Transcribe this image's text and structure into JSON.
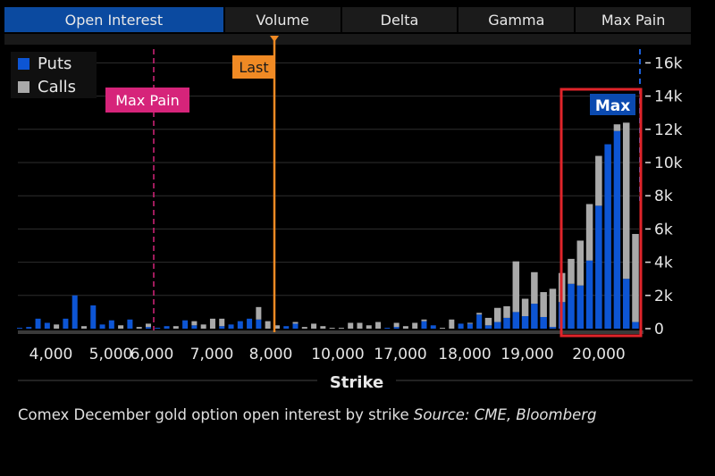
{
  "tabs": [
    {
      "label": "Open Interest",
      "active": true
    },
    {
      "label": "Volume"
    },
    {
      "label": "Delta"
    },
    {
      "label": "Gamma"
    },
    {
      "label": "Max Pain"
    }
  ],
  "caption": {
    "text": "Comex December gold option open interest by strike",
    "source": "Source: CME, Bloomberg"
  },
  "colors": {
    "puts": "#0d55d4",
    "calls": "#a9a9a9",
    "max_pain": "#d6247a",
    "last": "#f08a24",
    "highlight_box": "#e0242a",
    "max_badge": "#0b4ab0",
    "tab_active": "#0b4aa0"
  },
  "chart_data": {
    "type": "bar",
    "stacked": true,
    "xlabel": "Strike",
    "ylabel": "",
    "ylim": [
      0,
      16000
    ],
    "y_ticks": [
      "0",
      "2k",
      "4k",
      "6k",
      "8k",
      "10k",
      "12k",
      "14k",
      "16k"
    ],
    "x_tick_labels": [
      "4,000",
      "5,000",
      "6,000",
      "7,000",
      "8,000",
      "10,000",
      "17,000",
      "18,000",
      "19,000",
      "20,000"
    ],
    "grid": true,
    "legend_placement": "top-left",
    "series": [
      {
        "name": "Puts"
      },
      {
        "name": "Calls"
      }
    ],
    "bars_puts_calls_k": [
      [
        0.05,
        0
      ],
      [
        0.1,
        0
      ],
      [
        0.6,
        0
      ],
      [
        0.35,
        0
      ],
      [
        0,
        0.25
      ],
      [
        0.6,
        0
      ],
      [
        2,
        0
      ],
      [
        0,
        0.15
      ],
      [
        1.4,
        0
      ],
      [
        0.25,
        0
      ],
      [
        0.5,
        0
      ],
      [
        0,
        0.2
      ],
      [
        0.55,
        0
      ],
      [
        0,
        0.1
      ],
      [
        0.1,
        0.2
      ],
      [
        0.05,
        0
      ],
      [
        0.15,
        0
      ],
      [
        0,
        0.15
      ],
      [
        0.5,
        0
      ],
      [
        0.2,
        0.25
      ],
      [
        0,
        0.25
      ],
      [
        0,
        0.6
      ],
      [
        0.15,
        0.45
      ],
      [
        0.25,
        0
      ],
      [
        0.45,
        0
      ],
      [
        0.6,
        0
      ],
      [
        0.55,
        0.75
      ],
      [
        0,
        0.45
      ],
      [
        0,
        0.2
      ],
      [
        0.15,
        0
      ],
      [
        0.3,
        0.1
      ],
      [
        0,
        0.1
      ],
      [
        0,
        0.3
      ],
      [
        0,
        0.15
      ],
      [
        0,
        0.05
      ],
      [
        0,
        0.05
      ],
      [
        0,
        0.35
      ],
      [
        0,
        0.35
      ],
      [
        0,
        0.2
      ],
      [
        0,
        0.4
      ],
      [
        0.05,
        0
      ],
      [
        0.1,
        0.25
      ],
      [
        0,
        0.15
      ],
      [
        0,
        0.35
      ],
      [
        0.45,
        0.1
      ],
      [
        0.2,
        0
      ],
      [
        0,
        0.05
      ],
      [
        0,
        0.55
      ],
      [
        0.3,
        0
      ],
      [
        0.3,
        0.05
      ],
      [
        0.85,
        0.1
      ],
      [
        0.2,
        0.45
      ],
      [
        0.4,
        0.85
      ],
      [
        0.65,
        0.7
      ],
      [
        1.0,
        3.05
      ],
      [
        0.75,
        1.05
      ],
      [
        1.5,
        1.9
      ],
      [
        0.7,
        1.5
      ],
      [
        0.1,
        2.3
      ],
      [
        1.6,
        1.75
      ],
      [
        2.7,
        1.5
      ],
      [
        2.6,
        2.7
      ],
      [
        4.1,
        3.4
      ],
      [
        7.4,
        3.0
      ],
      [
        11.1,
        0
      ],
      [
        11.9,
        0.4
      ],
      [
        3.0,
        9.4
      ],
      [
        0.4,
        5.3
      ]
    ],
    "annotations": {
      "max_pain": "Max Pain",
      "last": "Last",
      "max": "Max"
    }
  }
}
